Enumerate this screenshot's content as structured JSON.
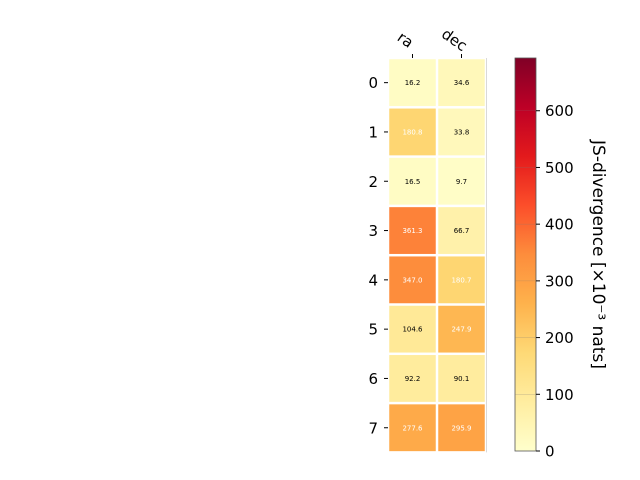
{
  "chart_data": {
    "type": "heatmap",
    "x_categories": [
      "ra",
      "dec"
    ],
    "y_categories": [
      "0",
      "1",
      "2",
      "3",
      "4",
      "5",
      "6",
      "7"
    ],
    "values": [
      [
        16.2,
        34.6
      ],
      [
        180.8,
        33.8
      ],
      [
        16.5,
        9.7
      ],
      [
        361.3,
        66.7
      ],
      [
        347.0,
        180.7
      ],
      [
        104.6,
        247.9
      ],
      [
        92.2,
        90.1
      ],
      [
        277.6,
        295.9
      ]
    ],
    "value_labels": [
      [
        "16.2",
        "34.6"
      ],
      [
        "180.8",
        "33.8"
      ],
      [
        "16.5",
        "9.7"
      ],
      [
        "361.3",
        "66.7"
      ],
      [
        "347.0",
        "180.7"
      ],
      [
        "104.6",
        "247.9"
      ],
      [
        "92.2",
        "90.1"
      ],
      [
        "277.6",
        "295.9"
      ]
    ],
    "colorbar": {
      "label": "JS-divergence [×10⁻³ nats]",
      "range": [
        0,
        693
      ],
      "ticks": [
        0,
        100,
        200,
        300,
        400,
        500,
        600
      ],
      "tick_labels": [
        "0",
        "100",
        "200",
        "300",
        "400",
        "500",
        "600"
      ],
      "colormap": "YlOrRd"
    },
    "grid": false,
    "x_tick_position": "top"
  }
}
